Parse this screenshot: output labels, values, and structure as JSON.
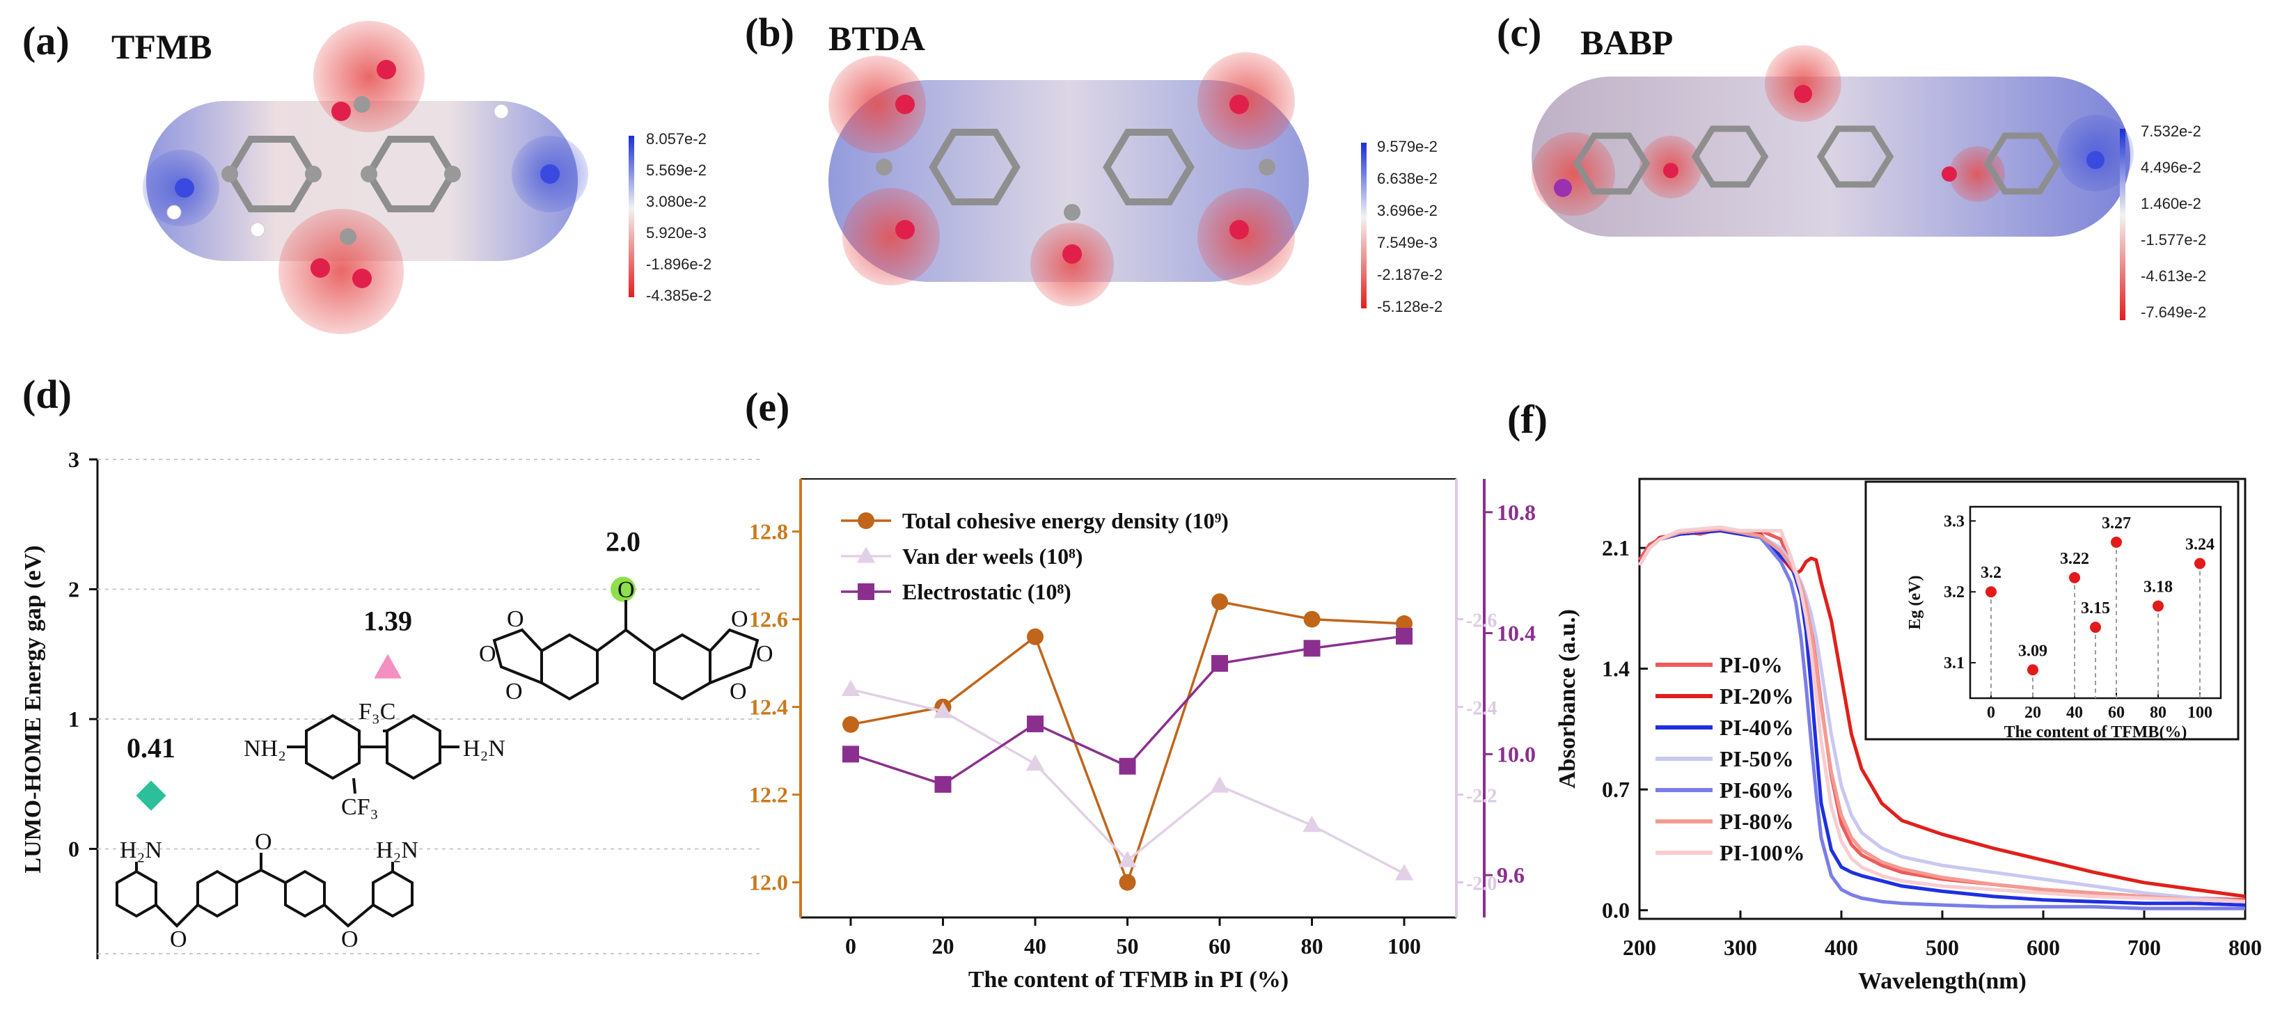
{
  "panels": {
    "a": {
      "label": "(a)",
      "name": "TFMB",
      "colorbar": [
        "8.057e-2",
        "5.569e-2",
        "3.080e-2",
        "5.920e-3",
        "-1.896e-2",
        "-4.385e-2"
      ]
    },
    "b": {
      "label": "(b)",
      "name": "BTDA",
      "colorbar": [
        "9.579e-2",
        "6.638e-2",
        "3.696e-2",
        "7.549e-3",
        "-2.187e-2",
        "-5.128e-2"
      ]
    },
    "c": {
      "label": "(c)",
      "name": "BABP",
      "colorbar": [
        "7.532e-2",
        "4.496e-2",
        "1.460e-2",
        "-1.577e-2",
        "-4.613e-2",
        "-7.649e-2"
      ]
    },
    "d": {
      "label": "(d)"
    },
    "e": {
      "label": "(e)"
    },
    "f": {
      "label": "(f)"
    }
  },
  "chem_labels": {
    "tfmb_cf3_top": "F₃C",
    "tfmb_nh2_left": "NH₂",
    "tfmb_h2n_right": "H₂N",
    "tfmb_cf3_bottom": "CF₃",
    "babp_h2n_left": "H₂N",
    "babp_h2n_right": "H₂N",
    "o": "O"
  },
  "chart_data": [
    {
      "id": "d",
      "type": "scatter",
      "title": "",
      "xlabel": "",
      "ylabel": "LUMO-HOME Energy gap (eV)",
      "ylim": [
        -0.85,
        3.0
      ],
      "yticks": [
        0,
        1,
        2,
        3
      ],
      "grid": true,
      "points": [
        {
          "name": "BABP",
          "value": 0.41,
          "label": "0.41",
          "marker": "diamond",
          "color": "#2bbf9a"
        },
        {
          "name": "TFMB",
          "value": 1.39,
          "label": "1.39",
          "marker": "triangle",
          "color": "#f48fc1"
        },
        {
          "name": "BTDA",
          "value": 2.0,
          "label": "2.0",
          "marker": "circle",
          "color": "#8ee04a"
        }
      ]
    },
    {
      "id": "e",
      "type": "line",
      "xlabel": "The content of TFMB in PI (%)",
      "categories": [
        0,
        20,
        40,
        50,
        60,
        80,
        100
      ],
      "xticks": [
        "0",
        "20",
        "40",
        "50",
        "60",
        "80",
        "100"
      ],
      "axes": {
        "left": {
          "ylim": [
            11.92,
            12.92
          ],
          "ticks": [
            "12.0",
            "12.2",
            "12.4",
            "12.6",
            "12.8"
          ],
          "tick_values": [
            12.0,
            12.2,
            12.4,
            12.6,
            12.8
          ],
          "color": "#c87a1e"
        },
        "right_inner": {
          "ylim": [
            -1.92,
            -2.92
          ],
          "ticks": [
            "-2.0",
            "-2.2",
            "-2.4",
            "-2.6"
          ],
          "tick_values": [
            -2.0,
            -2.2,
            -2.4,
            -2.6
          ],
          "color": "#dcc9e4"
        },
        "right_outer": {
          "ylim": [
            9.46,
            10.91
          ],
          "ticks": [
            "9.6",
            "10.0",
            "10.4",
            "10.8"
          ],
          "tick_values": [
            9.6,
            10.0,
            10.4,
            10.8
          ],
          "color": "#8b2f8f"
        }
      },
      "series": [
        {
          "name": "Total cohesive energy density (10⁹)",
          "axis": "left",
          "marker": "circle",
          "color": "#c0651a",
          "values": [
            12.36,
            12.4,
            12.56,
            12.0,
            12.64,
            12.6,
            12.59
          ]
        },
        {
          "name": "Van der weels (10⁸)",
          "axis": "right_inner",
          "marker": "triangle",
          "color": "#e2d0e6",
          "values": [
            -2.44,
            -2.39,
            -2.27,
            -2.05,
            -2.22,
            -2.13,
            -2.02
          ]
        },
        {
          "name": "Electrostatic (10⁸)",
          "axis": "right_outer",
          "marker": "square",
          "color": "#8b2f8f",
          "values": [
            10.0,
            9.9,
            10.1,
            9.96,
            10.3,
            10.35,
            10.39
          ]
        }
      ]
    },
    {
      "id": "f",
      "type": "line",
      "xlabel": "Wavelength(nm)",
      "ylabel": "Absorbance (a.u.)",
      "xlim": [
        200,
        800
      ],
      "ylim": [
        -0.05,
        2.5
      ],
      "xticks": [
        200,
        300,
        400,
        500,
        600,
        700,
        800
      ],
      "yticks": [
        "0.0",
        "0.7",
        "1.4",
        "2.1"
      ],
      "ytick_values": [
        0.0,
        0.7,
        1.4,
        2.1
      ],
      "x": [
        200,
        210,
        220,
        240,
        260,
        280,
        300,
        320,
        340,
        350,
        355,
        360,
        365,
        370,
        375,
        380,
        390,
        400,
        410,
        420,
        440,
        460,
        500,
        550,
        600,
        650,
        700,
        750,
        800
      ],
      "series": [
        {
          "name": "PI-0%",
          "color": "#ef5a5a",
          "values": [
            2.03,
            2.12,
            2.15,
            2.2,
            2.18,
            2.21,
            2.18,
            2.2,
            2.15,
            2.0,
            1.94,
            1.88,
            1.78,
            1.64,
            1.44,
            1.2,
            0.78,
            0.5,
            0.38,
            0.32,
            0.26,
            0.22,
            0.18,
            0.15,
            0.12,
            0.1,
            0.08,
            0.07,
            0.06
          ]
        },
        {
          "name": "PI-20%",
          "color": "#e0201b",
          "values": [
            2.0,
            2.1,
            2.16,
            2.18,
            2.19,
            2.2,
            2.19,
            2.18,
            2.05,
            1.98,
            1.95,
            1.97,
            2.02,
            2.04,
            2.03,
            1.9,
            1.68,
            1.35,
            1.02,
            0.82,
            0.62,
            0.52,
            0.44,
            0.36,
            0.29,
            0.22,
            0.16,
            0.12,
            0.08
          ]
        },
        {
          "name": "PI-40%",
          "color": "#1f2fe0",
          "values": [
            2.0,
            2.1,
            2.15,
            2.18,
            2.19,
            2.2,
            2.18,
            2.16,
            2.05,
            2.0,
            1.92,
            1.82,
            1.62,
            1.3,
            0.95,
            0.62,
            0.35,
            0.25,
            0.22,
            0.2,
            0.17,
            0.14,
            0.11,
            0.08,
            0.06,
            0.05,
            0.04,
            0.04,
            0.03
          ]
        },
        {
          "name": "PI-50%",
          "color": "#c8c8f2",
          "values": [
            2.0,
            2.1,
            2.15,
            2.19,
            2.2,
            2.21,
            2.19,
            2.17,
            2.1,
            2.02,
            1.96,
            1.9,
            1.82,
            1.72,
            1.58,
            1.4,
            1.02,
            0.72,
            0.55,
            0.45,
            0.36,
            0.31,
            0.26,
            0.22,
            0.18,
            0.14,
            0.1,
            0.07,
            0.05
          ]
        },
        {
          "name": "PI-60%",
          "color": "#7a7ee8",
          "values": [
            2.0,
            2.1,
            2.15,
            2.19,
            2.2,
            2.21,
            2.19,
            2.16,
            2.02,
            1.9,
            1.78,
            1.58,
            1.3,
            0.98,
            0.68,
            0.42,
            0.2,
            0.12,
            0.09,
            0.07,
            0.05,
            0.04,
            0.03,
            0.02,
            0.02,
            0.02,
            0.01,
            0.01,
            0.01
          ]
        },
        {
          "name": "PI-80%",
          "color": "#f49a92",
          "values": [
            2.0,
            2.1,
            2.15,
            2.19,
            2.2,
            2.21,
            2.19,
            2.17,
            2.08,
            2.0,
            1.95,
            1.88,
            1.78,
            1.62,
            1.42,
            1.18,
            0.8,
            0.55,
            0.42,
            0.35,
            0.28,
            0.24,
            0.19,
            0.15,
            0.12,
            0.1,
            0.08,
            0.06,
            0.05
          ]
        },
        {
          "name": "PI-100%",
          "color": "#f7cdd0",
          "values": [
            2.0,
            2.1,
            2.15,
            2.2,
            2.21,
            2.22,
            2.2,
            2.2,
            2.2,
            2.05,
            1.95,
            1.85,
            1.7,
            1.5,
            1.25,
            0.98,
            0.6,
            0.4,
            0.3,
            0.25,
            0.2,
            0.17,
            0.14,
            0.12,
            0.1,
            0.08,
            0.07,
            0.06,
            0.05
          ]
        }
      ],
      "inset": {
        "xlabel": "The content of TFMB(%)",
        "ylabel": "Eg (eV)",
        "xlim": [
          -10,
          110
        ],
        "ylim": [
          3.05,
          3.32
        ],
        "xticks": [
          0,
          20,
          40,
          60,
          80,
          100
        ],
        "yticks": [
          "3.1",
          "3.2",
          "3.3"
        ],
        "ytick_values": [
          3.1,
          3.2,
          3.3
        ],
        "color": "#e21a1a",
        "points": [
          {
            "x": 0,
            "y": 3.2,
            "label": "3.2"
          },
          {
            "x": 20,
            "y": 3.09,
            "label": "3.09"
          },
          {
            "x": 40,
            "y": 3.22,
            "label": "3.22"
          },
          {
            "x": 50,
            "y": 3.15,
            "label": "3.15"
          },
          {
            "x": 60,
            "y": 3.27,
            "label": "3.27"
          },
          {
            "x": 80,
            "y": 3.18,
            "label": "3.18"
          },
          {
            "x": 100,
            "y": 3.24,
            "label": "3.24"
          }
        ]
      }
    }
  ]
}
